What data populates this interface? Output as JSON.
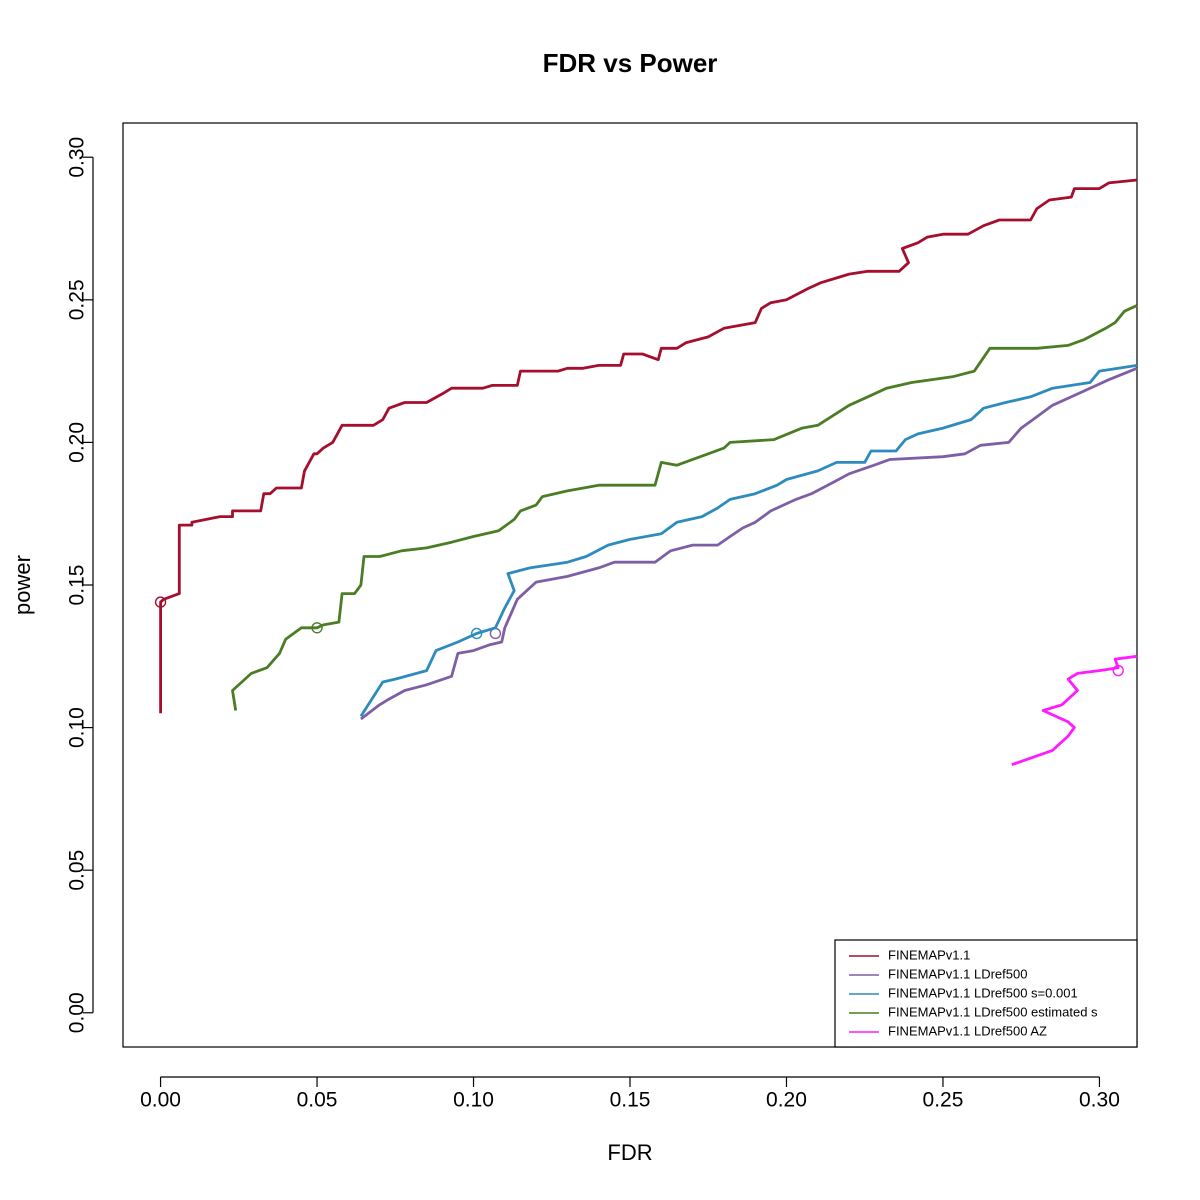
{
  "chart_data": {
    "type": "line",
    "title": "FDR vs Power",
    "xlabel": "FDR",
    "ylabel": "power",
    "xlim": [
      -0.012,
      0.312
    ],
    "ylim": [
      -0.012,
      0.312
    ],
    "x_ticks": [
      "0.00",
      "0.05",
      "0.10",
      "0.15",
      "0.20",
      "0.25",
      "0.30"
    ],
    "y_ticks": [
      "0.00",
      "0.05",
      "0.10",
      "0.15",
      "0.20",
      "0.25",
      "0.30"
    ],
    "grid": false,
    "legend_position": "bottom-right",
    "series": [
      {
        "name": "FINEMAPv1.1",
        "color": "#a50f2d",
        "marker": [
          0.0,
          0.144
        ],
        "points": [
          [
            0.0,
            0.105
          ],
          [
            0.0,
            0.144
          ],
          [
            0.001,
            0.145
          ],
          [
            0.006,
            0.147
          ],
          [
            0.006,
            0.171
          ],
          [
            0.01,
            0.171
          ],
          [
            0.01,
            0.172
          ],
          [
            0.019,
            0.174
          ],
          [
            0.023,
            0.174
          ],
          [
            0.023,
            0.176
          ],
          [
            0.032,
            0.176
          ],
          [
            0.033,
            0.182
          ],
          [
            0.035,
            0.182
          ],
          [
            0.037,
            0.184
          ],
          [
            0.045,
            0.184
          ],
          [
            0.046,
            0.19
          ],
          [
            0.049,
            0.196
          ],
          [
            0.05,
            0.196
          ],
          [
            0.052,
            0.198
          ],
          [
            0.055,
            0.2
          ],
          [
            0.058,
            0.206
          ],
          [
            0.068,
            0.206
          ],
          [
            0.071,
            0.208
          ],
          [
            0.073,
            0.212
          ],
          [
            0.078,
            0.214
          ],
          [
            0.085,
            0.214
          ],
          [
            0.09,
            0.217
          ],
          [
            0.093,
            0.219
          ],
          [
            0.103,
            0.219
          ],
          [
            0.106,
            0.22
          ],
          [
            0.114,
            0.22
          ],
          [
            0.115,
            0.225
          ],
          [
            0.127,
            0.225
          ],
          [
            0.13,
            0.226
          ],
          [
            0.135,
            0.226
          ],
          [
            0.14,
            0.227
          ],
          [
            0.147,
            0.227
          ],
          [
            0.148,
            0.231
          ],
          [
            0.154,
            0.231
          ],
          [
            0.159,
            0.229
          ],
          [
            0.16,
            0.233
          ],
          [
            0.165,
            0.233
          ],
          [
            0.168,
            0.235
          ],
          [
            0.175,
            0.237
          ],
          [
            0.18,
            0.24
          ],
          [
            0.19,
            0.242
          ],
          [
            0.192,
            0.247
          ],
          [
            0.195,
            0.249
          ],
          [
            0.2,
            0.25
          ],
          [
            0.207,
            0.254
          ],
          [
            0.211,
            0.256
          ],
          [
            0.217,
            0.258
          ],
          [
            0.22,
            0.259
          ],
          [
            0.226,
            0.26
          ],
          [
            0.236,
            0.26
          ],
          [
            0.239,
            0.263
          ],
          [
            0.237,
            0.268
          ],
          [
            0.242,
            0.27
          ],
          [
            0.245,
            0.272
          ],
          [
            0.25,
            0.273
          ],
          [
            0.258,
            0.273
          ],
          [
            0.263,
            0.276
          ],
          [
            0.268,
            0.278
          ],
          [
            0.278,
            0.278
          ],
          [
            0.28,
            0.282
          ],
          [
            0.284,
            0.285
          ],
          [
            0.291,
            0.286
          ],
          [
            0.292,
            0.289
          ],
          [
            0.3,
            0.289
          ],
          [
            0.303,
            0.291
          ],
          [
            0.312,
            0.292
          ]
        ]
      },
      {
        "name": "FINEMAPv1.1 LDref500",
        "color": "#7e5fa5",
        "marker": [
          0.107,
          0.133
        ],
        "points": [
          [
            0.064,
            0.103
          ],
          [
            0.07,
            0.108
          ],
          [
            0.073,
            0.11
          ],
          [
            0.078,
            0.113
          ],
          [
            0.085,
            0.115
          ],
          [
            0.093,
            0.118
          ],
          [
            0.095,
            0.126
          ],
          [
            0.1,
            0.127
          ],
          [
            0.105,
            0.129
          ],
          [
            0.109,
            0.13
          ],
          [
            0.11,
            0.135
          ],
          [
            0.112,
            0.14
          ],
          [
            0.114,
            0.145
          ],
          [
            0.117,
            0.148
          ],
          [
            0.12,
            0.151
          ],
          [
            0.13,
            0.153
          ],
          [
            0.14,
            0.156
          ],
          [
            0.145,
            0.158
          ],
          [
            0.158,
            0.158
          ],
          [
            0.163,
            0.162
          ],
          [
            0.17,
            0.164
          ],
          [
            0.178,
            0.164
          ],
          [
            0.182,
            0.167
          ],
          [
            0.186,
            0.17
          ],
          [
            0.19,
            0.172
          ],
          [
            0.195,
            0.176
          ],
          [
            0.203,
            0.18
          ],
          [
            0.208,
            0.182
          ],
          [
            0.215,
            0.186
          ],
          [
            0.22,
            0.189
          ],
          [
            0.228,
            0.192
          ],
          [
            0.233,
            0.194
          ],
          [
            0.25,
            0.195
          ],
          [
            0.257,
            0.196
          ],
          [
            0.262,
            0.199
          ],
          [
            0.271,
            0.2
          ],
          [
            0.275,
            0.205
          ],
          [
            0.28,
            0.209
          ],
          [
            0.285,
            0.213
          ],
          [
            0.295,
            0.218
          ],
          [
            0.303,
            0.222
          ],
          [
            0.312,
            0.226
          ]
        ]
      },
      {
        "name": "FINEMAPv1.1 LDref500 s=0.001",
        "color": "#2d8bbd",
        "marker": [
          0.101,
          0.133
        ],
        "points": [
          [
            0.064,
            0.104
          ],
          [
            0.071,
            0.116
          ],
          [
            0.075,
            0.117
          ],
          [
            0.085,
            0.12
          ],
          [
            0.088,
            0.127
          ],
          [
            0.095,
            0.13
          ],
          [
            0.101,
            0.133
          ],
          [
            0.107,
            0.135
          ],
          [
            0.11,
            0.142
          ],
          [
            0.113,
            0.148
          ],
          [
            0.111,
            0.154
          ],
          [
            0.118,
            0.156
          ],
          [
            0.13,
            0.158
          ],
          [
            0.136,
            0.16
          ],
          [
            0.143,
            0.164
          ],
          [
            0.15,
            0.166
          ],
          [
            0.16,
            0.168
          ],
          [
            0.165,
            0.172
          ],
          [
            0.173,
            0.174
          ],
          [
            0.178,
            0.177
          ],
          [
            0.182,
            0.18
          ],
          [
            0.19,
            0.182
          ],
          [
            0.197,
            0.185
          ],
          [
            0.2,
            0.187
          ],
          [
            0.21,
            0.19
          ],
          [
            0.216,
            0.193
          ],
          [
            0.225,
            0.193
          ],
          [
            0.227,
            0.197
          ],
          [
            0.235,
            0.197
          ],
          [
            0.238,
            0.201
          ],
          [
            0.242,
            0.203
          ],
          [
            0.25,
            0.205
          ],
          [
            0.259,
            0.208
          ],
          [
            0.263,
            0.212
          ],
          [
            0.27,
            0.214
          ],
          [
            0.278,
            0.216
          ],
          [
            0.285,
            0.219
          ],
          [
            0.297,
            0.221
          ],
          [
            0.3,
            0.225
          ],
          [
            0.312,
            0.227
          ]
        ]
      },
      {
        "name": "FINEMAPv1.1 LDref500 estimated s",
        "color": "#4b7d25",
        "marker": [
          0.05,
          0.135
        ],
        "points": [
          [
            0.024,
            0.106
          ],
          [
            0.023,
            0.113
          ],
          [
            0.029,
            0.119
          ],
          [
            0.034,
            0.121
          ],
          [
            0.038,
            0.126
          ],
          [
            0.04,
            0.131
          ],
          [
            0.045,
            0.135
          ],
          [
            0.05,
            0.135
          ],
          [
            0.052,
            0.136
          ],
          [
            0.057,
            0.137
          ],
          [
            0.058,
            0.147
          ],
          [
            0.062,
            0.147
          ],
          [
            0.064,
            0.15
          ],
          [
            0.065,
            0.16
          ],
          [
            0.07,
            0.16
          ],
          [
            0.077,
            0.162
          ],
          [
            0.085,
            0.163
          ],
          [
            0.093,
            0.165
          ],
          [
            0.1,
            0.167
          ],
          [
            0.108,
            0.169
          ],
          [
            0.113,
            0.173
          ],
          [
            0.115,
            0.176
          ],
          [
            0.12,
            0.178
          ],
          [
            0.122,
            0.181
          ],
          [
            0.13,
            0.183
          ],
          [
            0.14,
            0.185
          ],
          [
            0.158,
            0.185
          ],
          [
            0.16,
            0.193
          ],
          [
            0.165,
            0.192
          ],
          [
            0.175,
            0.196
          ],
          [
            0.18,
            0.198
          ],
          [
            0.182,
            0.2
          ],
          [
            0.196,
            0.201
          ],
          [
            0.205,
            0.205
          ],
          [
            0.21,
            0.206
          ],
          [
            0.22,
            0.213
          ],
          [
            0.226,
            0.216
          ],
          [
            0.232,
            0.219
          ],
          [
            0.24,
            0.221
          ],
          [
            0.253,
            0.223
          ],
          [
            0.26,
            0.225
          ],
          [
            0.265,
            0.233
          ],
          [
            0.28,
            0.233
          ],
          [
            0.29,
            0.234
          ],
          [
            0.295,
            0.236
          ],
          [
            0.302,
            0.24
          ],
          [
            0.305,
            0.242
          ],
          [
            0.308,
            0.246
          ],
          [
            0.312,
            0.248
          ]
        ]
      },
      {
        "name": "FINEMAPv1.1 LDref500 AZ",
        "color": "#ff1aff",
        "marker": [
          0.306,
          0.12
        ],
        "points": [
          [
            0.272,
            0.087
          ],
          [
            0.285,
            0.092
          ],
          [
            0.29,
            0.097
          ],
          [
            0.292,
            0.1
          ],
          [
            0.29,
            0.102
          ],
          [
            0.282,
            0.106
          ],
          [
            0.288,
            0.108
          ],
          [
            0.29,
            0.11
          ],
          [
            0.293,
            0.113
          ],
          [
            0.29,
            0.117
          ],
          [
            0.293,
            0.119
          ],
          [
            0.3,
            0.12
          ],
          [
            0.306,
            0.121
          ],
          [
            0.305,
            0.124
          ],
          [
            0.312,
            0.125
          ]
        ]
      }
    ]
  }
}
